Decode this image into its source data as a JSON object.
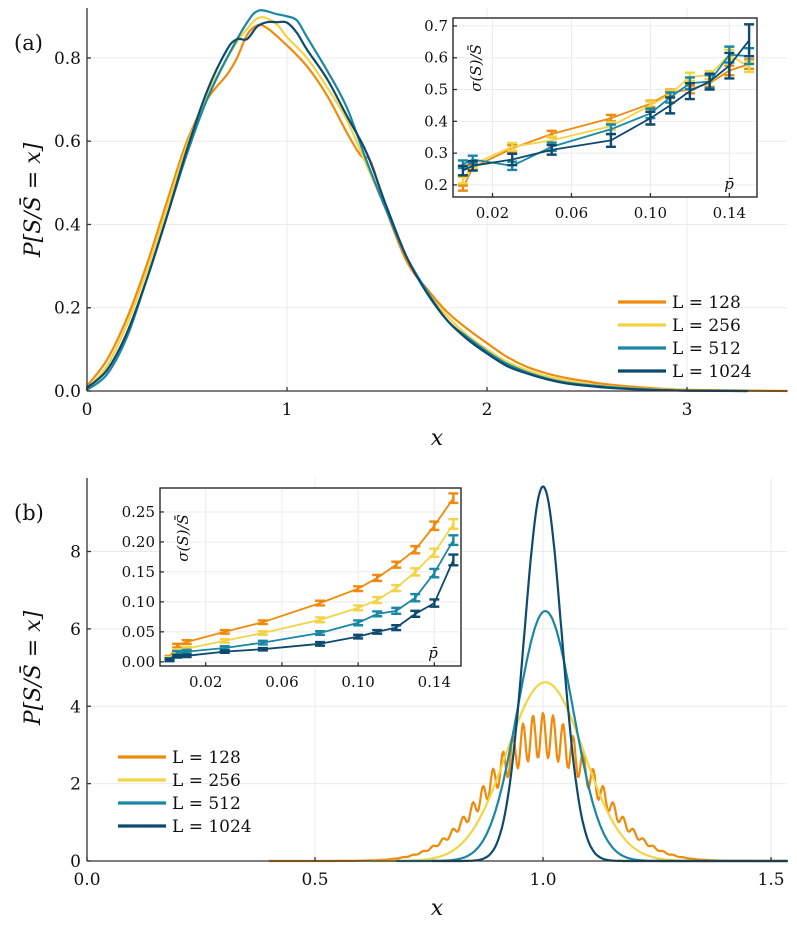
{
  "chart_data": [
    {
      "panel": "(a)",
      "type": "line",
      "xlabel": "x",
      "ylabel": "P[S/S̄ = x]",
      "xlim": [
        0,
        3.5
      ],
      "ylim": [
        0,
        0.92
      ],
      "xticks": [
        "0",
        "1",
        "2",
        "3"
      ],
      "xtick_values": [
        0,
        1,
        2,
        3
      ],
      "yticks": [
        "0.0",
        "0.2",
        "0.4",
        "0.6",
        "0.8"
      ],
      "ytick_values": [
        0,
        0.2,
        0.4,
        0.6,
        0.8
      ],
      "grid": true,
      "legend": "bottom-right",
      "series": [
        {
          "name": "L = 128",
          "color": "#ef8a0c",
          "x": [
            0,
            0.1,
            0.2,
            0.3,
            0.4,
            0.5,
            0.6,
            0.7,
            0.75,
            0.8,
            0.85,
            0.9,
            1.0,
            1.1,
            1.2,
            1.3,
            1.37,
            1.42,
            1.5,
            1.6,
            1.7,
            1.8,
            1.9,
            2.0,
            2.1,
            2.2,
            2.3,
            2.4,
            2.5,
            2.6,
            2.8,
            3.0,
            3.3,
            3.5
          ],
          "y": [
            0.012,
            0.075,
            0.175,
            0.305,
            0.455,
            0.6,
            0.7,
            0.76,
            0.8,
            0.855,
            0.878,
            0.872,
            0.83,
            0.78,
            0.71,
            0.62,
            0.565,
            0.55,
            0.43,
            0.31,
            0.245,
            0.19,
            0.15,
            0.115,
            0.082,
            0.058,
            0.042,
            0.031,
            0.023,
            0.016,
            0.008,
            0.003,
            0.001,
            0.0
          ]
        },
        {
          "name": "L = 256",
          "color": "#f2d446",
          "x": [
            0,
            0.1,
            0.2,
            0.3,
            0.4,
            0.5,
            0.6,
            0.7,
            0.8,
            0.87,
            0.95,
            1.0,
            1.1,
            1.2,
            1.3,
            1.4,
            1.5,
            1.6,
            1.7,
            1.8,
            1.9,
            2.0,
            2.1,
            2.2,
            2.3,
            2.4,
            2.5,
            2.6,
            2.8,
            3.0,
            3.3
          ],
          "y": [
            0.005,
            0.06,
            0.16,
            0.29,
            0.44,
            0.59,
            0.71,
            0.8,
            0.87,
            0.898,
            0.88,
            0.85,
            0.8,
            0.73,
            0.65,
            0.54,
            0.43,
            0.32,
            0.24,
            0.18,
            0.135,
            0.1,
            0.07,
            0.05,
            0.035,
            0.025,
            0.017,
            0.011,
            0.005,
            0.002,
            0.0
          ]
        },
        {
          "name": "L = 512",
          "color": "#1a87a5",
          "x": [
            0,
            0.1,
            0.2,
            0.3,
            0.4,
            0.5,
            0.6,
            0.7,
            0.8,
            0.86,
            0.95,
            1.0,
            1.05,
            1.1,
            1.2,
            1.3,
            1.4,
            1.5,
            1.6,
            1.7,
            1.8,
            1.9,
            2.0,
            2.1,
            2.2,
            2.3,
            2.4,
            2.6,
            2.8,
            3.0,
            3.3
          ],
          "y": [
            0.003,
            0.04,
            0.13,
            0.27,
            0.42,
            0.57,
            0.7,
            0.8,
            0.885,
            0.914,
            0.905,
            0.9,
            0.89,
            0.85,
            0.77,
            0.68,
            0.55,
            0.43,
            0.32,
            0.24,
            0.17,
            0.13,
            0.095,
            0.065,
            0.045,
            0.03,
            0.02,
            0.01,
            0.004,
            0.001,
            0.0
          ]
        },
        {
          "name": "L = 1024",
          "color": "#0d4a6e",
          "x": [
            0,
            0.1,
            0.2,
            0.3,
            0.4,
            0.5,
            0.6,
            0.7,
            0.75,
            0.8,
            0.85,
            0.9,
            0.95,
            1.0,
            1.05,
            1.1,
            1.2,
            1.3,
            1.4,
            1.5,
            1.6,
            1.7,
            1.8,
            1.9,
            2.0,
            2.1,
            2.2,
            2.3,
            2.4,
            2.6,
            2.8,
            3.0,
            3.3
          ],
          "y": [
            0.008,
            0.05,
            0.14,
            0.27,
            0.42,
            0.58,
            0.72,
            0.82,
            0.845,
            0.845,
            0.875,
            0.886,
            0.886,
            0.885,
            0.86,
            0.82,
            0.75,
            0.66,
            0.57,
            0.44,
            0.32,
            0.235,
            0.17,
            0.125,
            0.09,
            0.06,
            0.042,
            0.028,
            0.018,
            0.008,
            0.003,
            0.001,
            0.0
          ]
        }
      ],
      "inset": {
        "type": "line-errorbar",
        "xlabel": "p̄",
        "ylabel": "σ(S)/S̄",
        "xlim": [
          0.0,
          0.154
        ],
        "ylim": [
          0.162,
          0.725
        ],
        "xticks": [
          "0.02",
          "0.06",
          "0.10",
          "0.14"
        ],
        "xtick_values": [
          0.02,
          0.06,
          0.1,
          0.14
        ],
        "yticks": [
          "0.2",
          "0.3",
          "0.4",
          "0.5",
          "0.6",
          "0.7"
        ],
        "ytick_values": [
          0.2,
          0.3,
          0.4,
          0.5,
          0.6,
          0.7
        ],
        "x": [
          0.005,
          0.01,
          0.03,
          0.05,
          0.08,
          0.1,
          0.11,
          0.12,
          0.13,
          0.14,
          0.15
        ],
        "series": [
          {
            "name": "L = 128",
            "color": "#ef8a0c",
            "y": [
              0.19,
              0.255,
              0.315,
              0.36,
              0.41,
              0.455,
              0.49,
              0.5,
              0.52,
              0.56,
              0.58
            ],
            "err": [
              0.008,
              0.008,
              0.01,
              0.01,
              0.01,
              0.01,
              0.01,
              0.012,
              0.012,
              0.015,
              0.015
            ]
          },
          {
            "name": "L = 256",
            "color": "#f2d446",
            "y": [
              0.215,
              0.265,
              0.32,
              0.34,
              0.385,
              0.45,
              0.485,
              0.54,
              0.545,
              0.61,
              0.57
            ],
            "err": [
              0.01,
              0.01,
              0.012,
              0.012,
              0.012,
              0.012,
              0.012,
              0.013,
              0.013,
              0.015,
              0.015
            ]
          },
          {
            "name": "L = 512",
            "color": "#1a87a5",
            "y": [
              0.265,
              0.28,
              0.26,
              0.32,
              0.375,
              0.425,
              0.475,
              0.52,
              0.525,
              0.61,
              0.605
            ],
            "err": [
              0.012,
              0.012,
              0.013,
              0.013,
              0.015,
              0.015,
              0.016,
              0.018,
              0.02,
              0.025,
              0.025
            ]
          },
          {
            "name": "L = 1024",
            "color": "#0d4a6e",
            "y": [
              0.245,
              0.26,
              0.28,
              0.31,
              0.34,
              0.41,
              0.45,
              0.495,
              0.525,
              0.575,
              0.655
            ],
            "err": [
              0.015,
              0.015,
              0.018,
              0.015,
              0.02,
              0.02,
              0.025,
              0.025,
              0.025,
              0.04,
              0.05
            ]
          }
        ]
      }
    },
    {
      "panel": "(b)",
      "type": "line",
      "xlabel": "x",
      "ylabel": "P[S/S̄ = x]",
      "xlim": [
        0.0,
        1.535
      ],
      "ylim": [
        0,
        9.9
      ],
      "xticks": [
        "0.0",
        "0.5",
        "1.0",
        "1.5"
      ],
      "xtick_values": [
        0.0,
        0.5,
        1.0,
        1.5
      ],
      "yticks": [
        "0",
        "2",
        "4",
        "6",
        "8"
      ],
      "ytick_values": [
        0,
        2,
        4,
        6,
        8
      ],
      "grid": true,
      "legend": "middle-left",
      "series": [
        {
          "name": "L = 128",
          "color": "#ef8a0c",
          "center": 1.0,
          "sigma": 0.115,
          "peak": 3.25,
          "ripple": 0.18,
          "ripple_period": 0.022,
          "xmin": 0.4,
          "xmax": 1.535
        },
        {
          "name": "L = 256",
          "color": "#f2d446",
          "center": 1.005,
          "sigma": 0.085,
          "peak": 4.62,
          "ripple": 0.0,
          "ripple_period": 0.022,
          "xmin": 0.625,
          "xmax": 1.535
        },
        {
          "name": "L = 512",
          "color": "#1a87a5",
          "center": 1.005,
          "sigma": 0.061,
          "peak": 6.46,
          "ripple": 0.0,
          "ripple_period": 0.022,
          "xmin": 0.68,
          "xmax": 1.535
        },
        {
          "name": "L = 1024",
          "color": "#0d4a6e",
          "center": 1.0,
          "sigma": 0.041,
          "peak": 9.68,
          "ripple": 0.0,
          "ripple_period": 0.022,
          "xmin": 0.757,
          "xmax": 1.535
        }
      ],
      "inset": {
        "type": "line-errorbar",
        "xlabel": "p̄",
        "ylabel": "σ(S)/S̄",
        "xlim": [
          -0.004,
          0.154
        ],
        "ylim": [
          -0.007,
          0.29
        ],
        "xticks": [
          "0.02",
          "0.06",
          "0.10",
          "0.14"
        ],
        "xtick_values": [
          0.02,
          0.06,
          0.1,
          0.14
        ],
        "yticks": [
          "0.00",
          "0.05",
          "0.10",
          "0.15",
          "0.20",
          "0.25"
        ],
        "ytick_values": [
          0.0,
          0.05,
          0.1,
          0.15,
          0.2,
          0.25
        ],
        "x": [
          0.001,
          0.005,
          0.01,
          0.03,
          0.05,
          0.08,
          0.1,
          0.11,
          0.12,
          0.13,
          0.14,
          0.15
        ],
        "series": [
          {
            "name": "L = 128",
            "color": "#ef8a0c",
            "y": [
              0.008,
              0.027,
              0.033,
              0.05,
              0.066,
              0.098,
              0.122,
              0.14,
              0.162,
              0.187,
              0.227,
              0.273
            ],
            "err": [
              0.002,
              0.003,
              0.003,
              0.003,
              0.003,
              0.004,
              0.004,
              0.005,
              0.005,
              0.006,
              0.007,
              0.008
            ]
          },
          {
            "name": "L = 256",
            "color": "#f2d446",
            "y": [
              0.006,
              0.018,
              0.022,
              0.035,
              0.048,
              0.07,
              0.09,
              0.103,
              0.123,
              0.15,
              0.182,
              0.23
            ],
            "err": [
              0.002,
              0.003,
              0.003,
              0.003,
              0.003,
              0.004,
              0.004,
              0.005,
              0.005,
              0.006,
              0.007,
              0.008
            ]
          },
          {
            "name": "L = 512",
            "color": "#1a87a5",
            "y": [
              0.004,
              0.015,
              0.017,
              0.023,
              0.032,
              0.048,
              0.065,
              0.08,
              0.085,
              0.107,
              0.148,
              0.203
            ],
            "err": [
              0.002,
              0.003,
              0.003,
              0.003,
              0.003,
              0.003,
              0.004,
              0.004,
              0.005,
              0.006,
              0.007,
              0.008
            ]
          },
          {
            "name": "L = 1024",
            "color": "#0d4a6e",
            "y": [
              0.003,
              0.009,
              0.01,
              0.017,
              0.021,
              0.03,
              0.042,
              0.05,
              0.057,
              0.08,
              0.098,
              0.17
            ],
            "err": [
              0.002,
              0.002,
              0.002,
              0.002,
              0.002,
              0.003,
              0.003,
              0.003,
              0.004,
              0.005,
              0.006,
              0.009
            ]
          }
        ]
      }
    }
  ]
}
